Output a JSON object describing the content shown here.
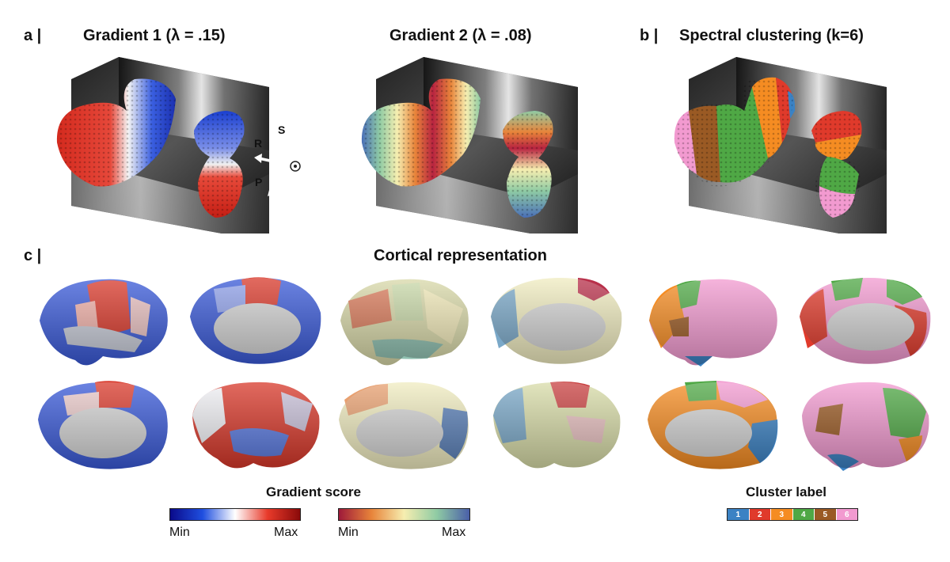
{
  "panel_a": {
    "label": "a |",
    "title_g1": "Gradient 1 (λ = .15)",
    "title_g2": "Gradient 2 (λ = .08)",
    "axis_s": "S",
    "axis_r": "R",
    "axis_p": "P"
  },
  "panel_b": {
    "label": "b |",
    "title": "Spectral clustering (k=6)"
  },
  "panel_c": {
    "label": "c |",
    "title": "Cortical representation"
  },
  "legend_gradient": {
    "title": "Gradient score",
    "min": "Min",
    "max": "Max",
    "colormap1": [
      "#0a0a8a",
      "#1f4fe0",
      "#ffffff",
      "#e83a2a",
      "#8a0a0a"
    ],
    "colormap2": [
      "#9e1a3a",
      "#e8843a",
      "#f6eeb0",
      "#8fcba4",
      "#4a5fa8"
    ]
  },
  "legend_cluster": {
    "title": "Cluster label",
    "labels": [
      "1",
      "2",
      "3",
      "4",
      "5",
      "6"
    ],
    "colors": [
      "#3b82c4",
      "#e03a2b",
      "#f58c22",
      "#4fa845",
      "#9a5a24",
      "#f29ad0"
    ]
  }
}
